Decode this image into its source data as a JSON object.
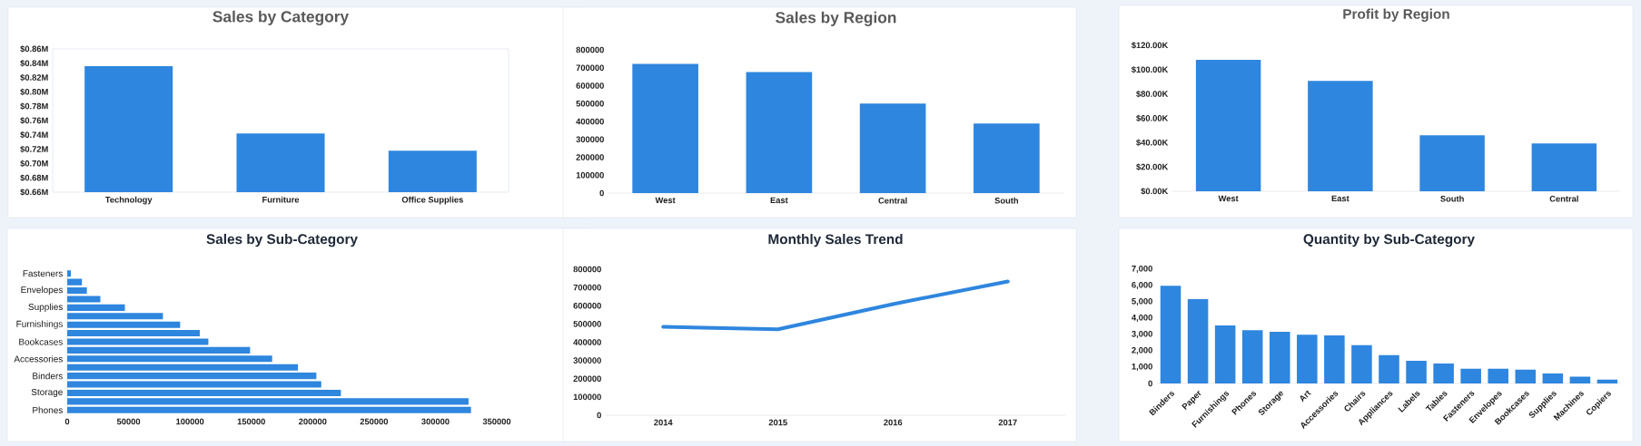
{
  "chart_data": [
    {
      "type": "bar",
      "title": "Sales by Category",
      "categories": [
        "Technology",
        "Furniture",
        "Office Supplies"
      ],
      "values": [
        0.836,
        0.742,
        0.718
      ],
      "color": "#2e86de",
      "ylim": [
        0.66,
        0.86
      ],
      "yticks": [
        {
          "value": 0.66,
          "label": "$0.66M"
        },
        {
          "value": 0.68,
          "label": "$0.68M"
        },
        {
          "value": 0.7,
          "label": "$0.70M"
        },
        {
          "value": 0.72,
          "label": "$0.72M"
        },
        {
          "value": 0.74,
          "label": "$0.74M"
        },
        {
          "value": 0.76,
          "label": "$0.76M"
        },
        {
          "value": 0.78,
          "label": "$0.78M"
        },
        {
          "value": 0.8,
          "label": "$0.80M"
        },
        {
          "value": 0.82,
          "label": "$0.82M"
        },
        {
          "value": 0.84,
          "label": "$0.84M"
        },
        {
          "value": 0.86,
          "label": "$0.86M"
        }
      ]
    },
    {
      "type": "bar",
      "title": "Sales by Region",
      "categories": [
        "West",
        "East",
        "Central",
        "South"
      ],
      "values": [
        722000,
        676000,
        500000,
        389000
      ],
      "color": "#2e86de",
      "ylim": [
        0,
        800000
      ],
      "yticks": [
        0,
        100000,
        200000,
        300000,
        400000,
        500000,
        600000,
        700000,
        800000
      ]
    },
    {
      "type": "bar",
      "title": "Profit by Region",
      "categories": [
        "West",
        "East",
        "South",
        "Central"
      ],
      "values": [
        108,
        90.7,
        46,
        39.3
      ],
      "color": "#2e86de",
      "ylim": [
        0,
        120
      ],
      "yticks": [
        {
          "value": 0,
          "label": "$0.00K"
        },
        {
          "value": 20,
          "label": "$20.00K"
        },
        {
          "value": 40,
          "label": "$40.00K"
        },
        {
          "value": 60,
          "label": "$60.00K"
        },
        {
          "value": 80,
          "label": "$80.00K"
        },
        {
          "value": 100,
          "label": "$100.00K"
        },
        {
          "value": 120,
          "label": "$120.00K"
        }
      ]
    },
    {
      "type": "bar",
      "orientation": "horizontal",
      "title": "Sales by Sub-Category",
      "categories": [
        "Fasteners",
        null,
        "Envelopes",
        null,
        "Supplies",
        null,
        "Furnishings",
        null,
        "Bookcases",
        null,
        "Accessories",
        null,
        "Binders",
        null,
        "Storage",
        null,
        "Phones"
      ],
      "values": [
        3000,
        12000,
        16000,
        27000,
        47000,
        78000,
        92000,
        108000,
        115000,
        149000,
        167000,
        188000,
        203000,
        207000,
        223000,
        327000,
        329000
      ],
      "color": "#2e86de",
      "xlim": [
        0,
        350000
      ],
      "xticks": [
        0,
        50000,
        100000,
        150000,
        200000,
        250000,
        300000,
        350000
      ]
    },
    {
      "type": "line",
      "title": "Monthly Sales Trend",
      "categories": [
        "2014",
        "2015",
        "2016",
        "2017"
      ],
      "values": [
        484000,
        471000,
        609000,
        733000
      ],
      "color": "#2e86de",
      "ylim": [
        0,
        800000
      ],
      "yticks": [
        0,
        100000,
        200000,
        300000,
        400000,
        500000,
        600000,
        700000,
        800000
      ]
    },
    {
      "type": "bar",
      "title": "Quantity by Sub-Category",
      "categories": [
        "Binders",
        "Paper",
        "Furnishings",
        "Phones",
        "Storage",
        "Art",
        "Accessories",
        "Chairs",
        "Appliances",
        "Labels",
        "Tables",
        "Fasteners",
        "Envelopes",
        "Bookcases",
        "Supplies",
        "Machines",
        "Copiers"
      ],
      "values": [
        5980,
        5160,
        3560,
        3270,
        3160,
        2990,
        2940,
        2340,
        1730,
        1390,
        1220,
        900,
        900,
        840,
        610,
        410,
        230
      ],
      "color": "#2e86de",
      "ylim": [
        0,
        7000
      ],
      "yticks": [
        0,
        {
          "value": 1000,
          "label": "1,000"
        },
        {
          "value": 2000,
          "label": "2,000"
        },
        {
          "value": 3000,
          "label": "3,000"
        },
        {
          "value": 4000,
          "label": "4,000"
        },
        {
          "value": 5000,
          "label": "5,000"
        },
        {
          "value": 6000,
          "label": "6,000"
        },
        {
          "value": 7000,
          "label": "7,000"
        }
      ]
    }
  ]
}
